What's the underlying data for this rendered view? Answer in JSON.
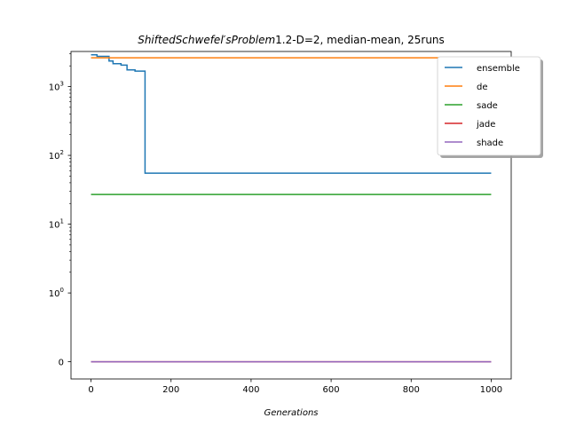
{
  "chart_data": {
    "type": "line",
    "title_italic": "ShiftedSchwefel′sProblem",
    "title_rest": "1.2-D=2, median-mean, 25runs",
    "xlabel": "Generations",
    "ylabel": "",
    "xlim": [
      -50,
      1050
    ],
    "yscale": "symlog",
    "xticks": [
      0,
      200,
      400,
      600,
      800,
      1000
    ],
    "ytick_labels": [
      "0",
      "10^0",
      "10^1",
      "10^2",
      "10^3"
    ],
    "ytick_values": [
      0,
      1,
      10,
      100,
      1000
    ],
    "legend_position": "upper-right",
    "series": [
      {
        "name": "ensemble",
        "color": "#1f77b4",
        "points": [
          [
            0,
            2900
          ],
          [
            15,
            2900
          ],
          [
            15,
            2750
          ],
          [
            45,
            2750
          ],
          [
            45,
            2350
          ],
          [
            55,
            2350
          ],
          [
            55,
            2150
          ],
          [
            75,
            2150
          ],
          [
            75,
            2050
          ],
          [
            90,
            2050
          ],
          [
            90,
            1750
          ],
          [
            110,
            1750
          ],
          [
            110,
            1680
          ],
          [
            135,
            1680
          ],
          [
            135,
            55
          ],
          [
            1000,
            55
          ]
        ]
      },
      {
        "name": "de",
        "color": "#ff7f0e",
        "points": [
          [
            0,
            2620
          ],
          [
            1000,
            2620
          ]
        ]
      },
      {
        "name": "sade",
        "color": "#2ca02c",
        "points": [
          [
            0,
            27
          ],
          [
            1000,
            27
          ]
        ]
      },
      {
        "name": "jade",
        "color": "#d62728",
        "points": [
          [
            0,
            0
          ],
          [
            1000,
            0
          ]
        ]
      },
      {
        "name": "shade",
        "color": "#9467bd",
        "points": [
          [
            0,
            0
          ],
          [
            1000,
            0
          ]
        ]
      }
    ]
  }
}
